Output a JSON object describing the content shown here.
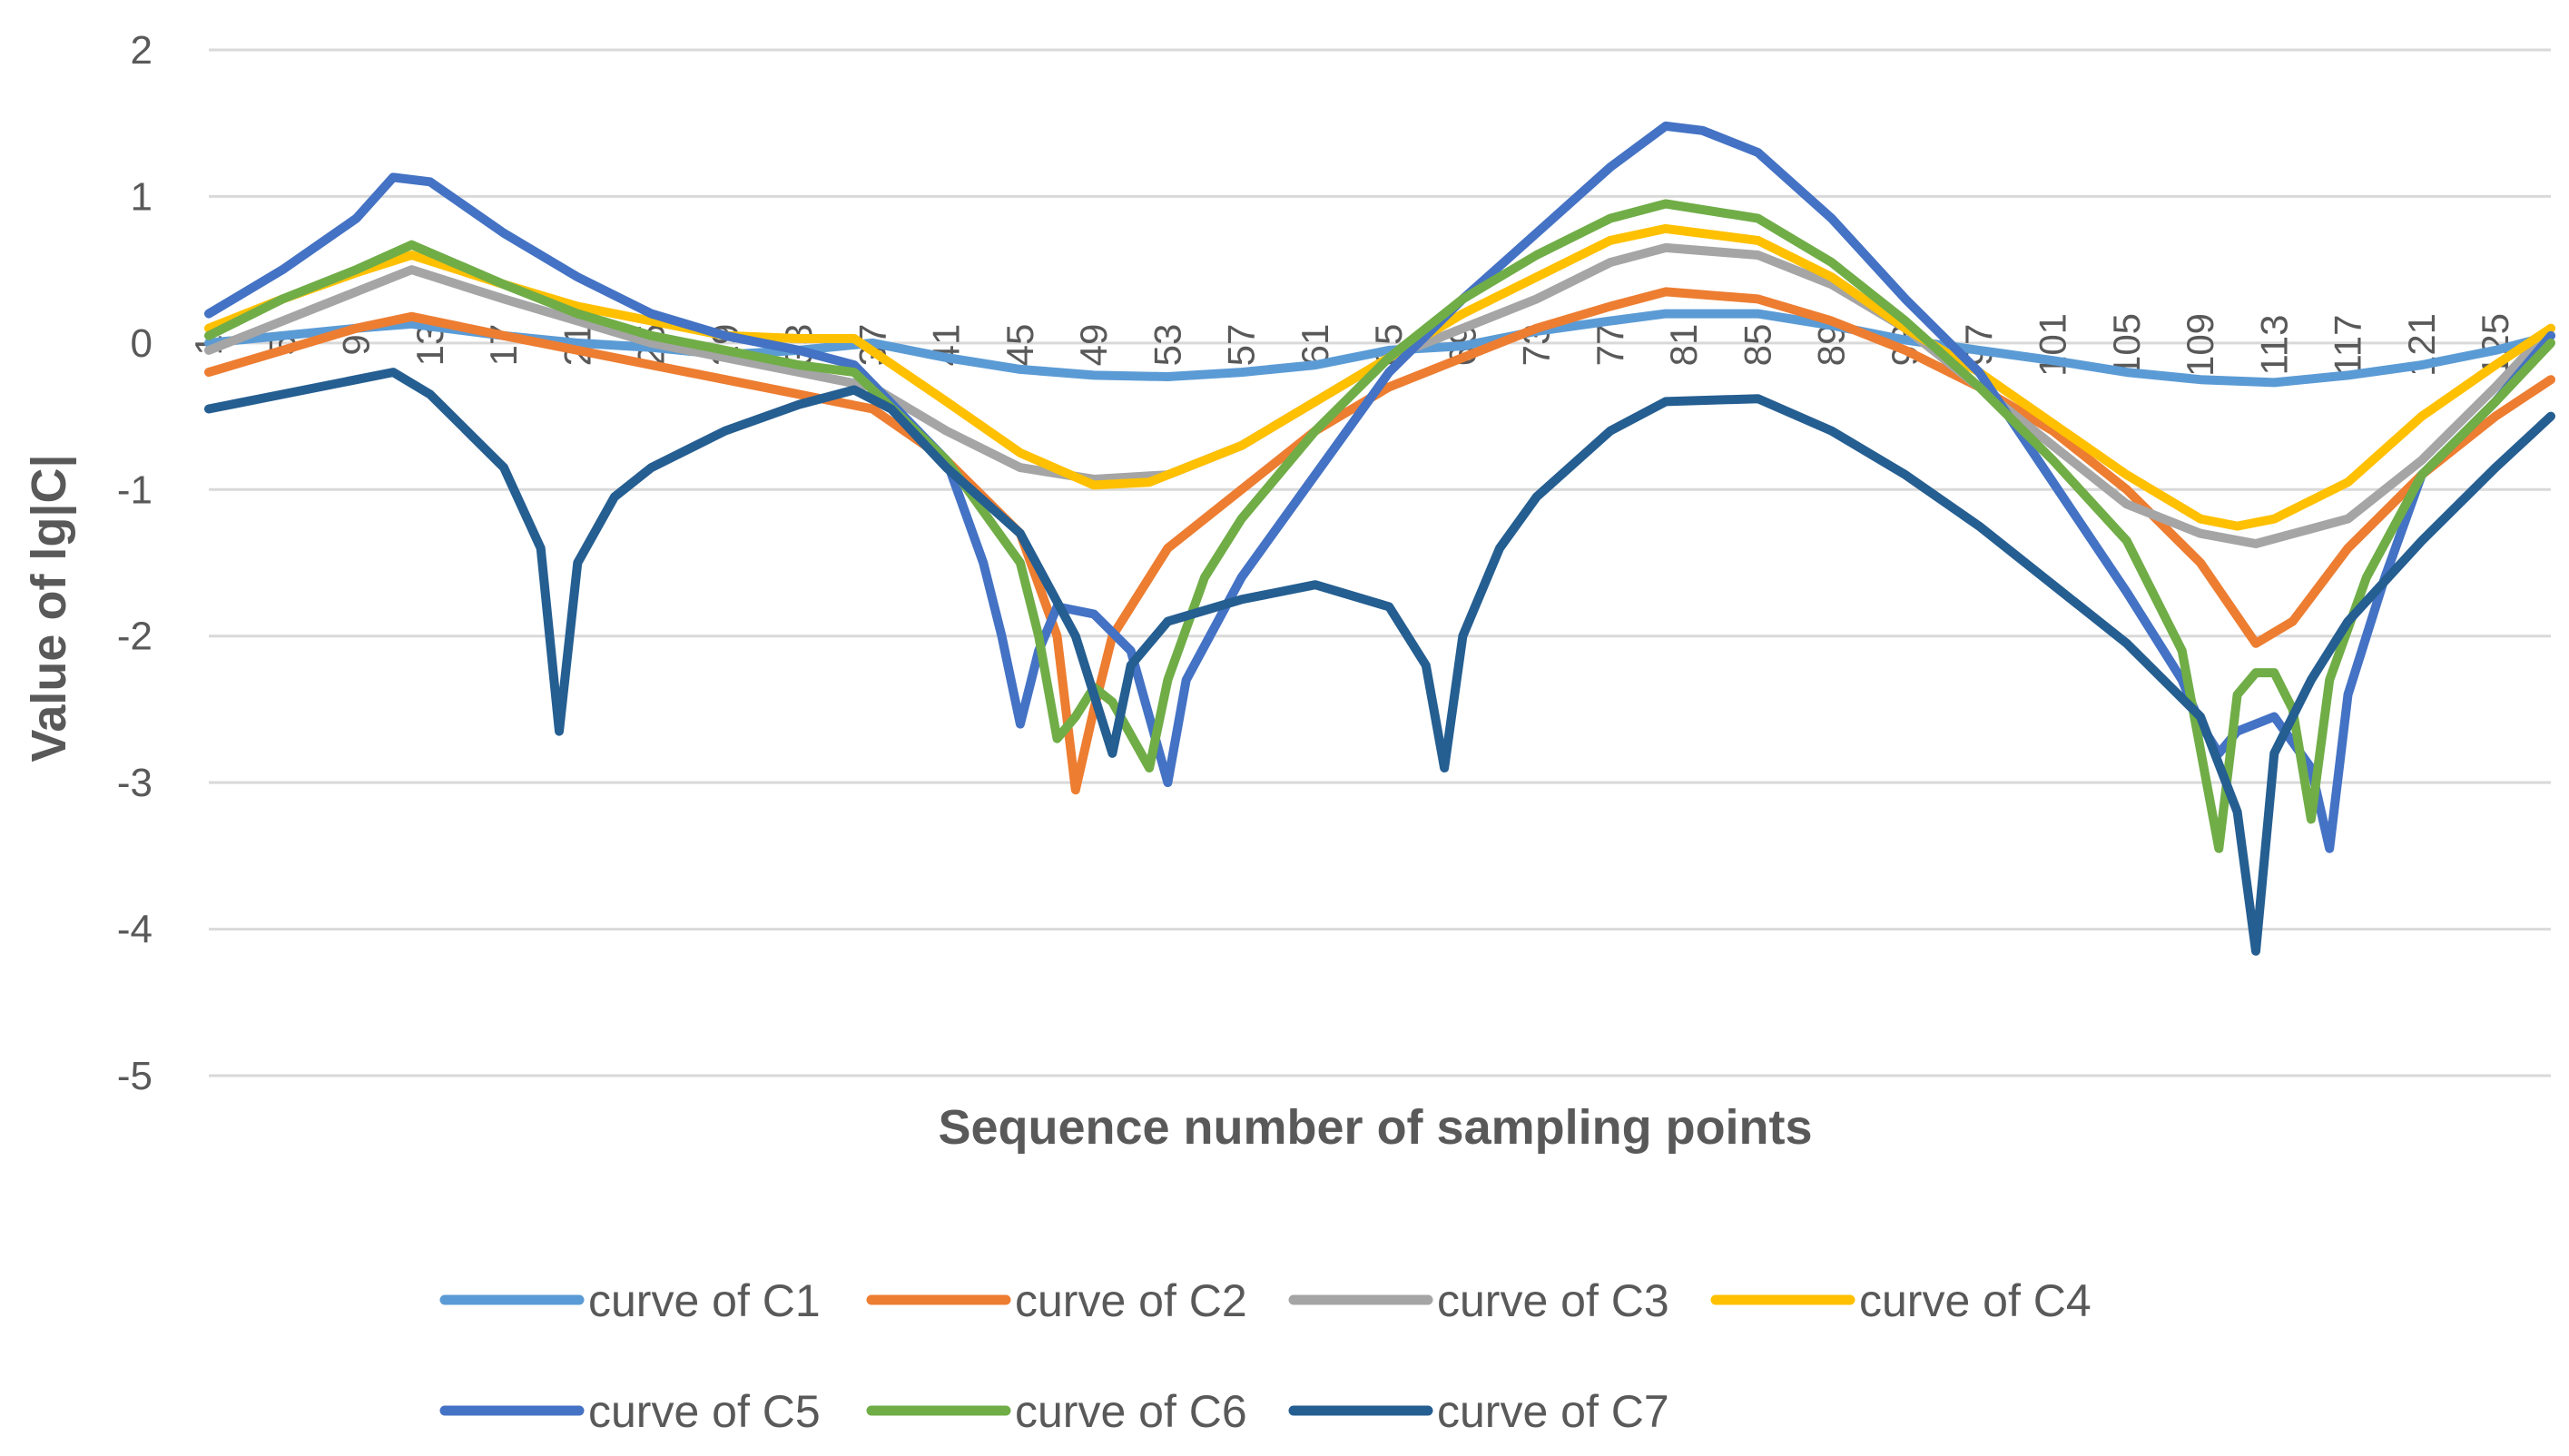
{
  "chart_data": {
    "type": "line",
    "title": "",
    "xlabel": "Sequence number of sampling points",
    "ylabel": "Value of lg|C|",
    "ylim": [
      -5,
      2
    ],
    "yticks": [
      "2",
      "1",
      "0",
      "-1",
      "-2",
      "-3",
      "-4",
      "-5"
    ],
    "xticks": [
      "1",
      "5",
      "9",
      "13",
      "17",
      "21",
      "25",
      "29",
      "33",
      "37",
      "41",
      "45",
      "49",
      "53",
      "57",
      "61",
      "65",
      "69",
      "73",
      "77",
      "81",
      "85",
      "89",
      "93",
      "97",
      "101",
      "105",
      "109",
      "113",
      "117",
      "121",
      "125"
    ],
    "xlim": [
      1,
      128
    ],
    "series": [
      {
        "name": "curve of C1",
        "color": "#5B9BD5",
        "points": [
          [
            1,
            0
          ],
          [
            5,
            0.05
          ],
          [
            9,
            0.1
          ],
          [
            12,
            0.13
          ],
          [
            17,
            0.05
          ],
          [
            21,
            0
          ],
          [
            25,
            -0.03
          ],
          [
            29,
            -0.08
          ],
          [
            33,
            -0.05
          ],
          [
            37,
            0
          ],
          [
            41,
            -0.1
          ],
          [
            45,
            -0.18
          ],
          [
            49,
            -0.22
          ],
          [
            53,
            -0.23
          ],
          [
            57,
            -0.2
          ],
          [
            61,
            -0.15
          ],
          [
            65,
            -0.05
          ],
          [
            69,
            -0.02
          ],
          [
            73,
            0.08
          ],
          [
            77,
            0.15
          ],
          [
            80,
            0.2
          ],
          [
            85,
            0.2
          ],
          [
            89,
            0.12
          ],
          [
            93,
            0.02
          ],
          [
            97,
            -0.05
          ],
          [
            101,
            -0.12
          ],
          [
            105,
            -0.2
          ],
          [
            109,
            -0.25
          ],
          [
            113,
            -0.27
          ],
          [
            117,
            -0.22
          ],
          [
            121,
            -0.15
          ],
          [
            125,
            -0.05
          ],
          [
            128,
            0.05
          ]
        ]
      },
      {
        "name": "curve of C2",
        "color": "#ED7D31",
        "points": [
          [
            1,
            -0.2
          ],
          [
            5,
            -0.05
          ],
          [
            9,
            0.1
          ],
          [
            12,
            0.18
          ],
          [
            17,
            0.05
          ],
          [
            21,
            -0.05
          ],
          [
            25,
            -0.15
          ],
          [
            29,
            -0.25
          ],
          [
            33,
            -0.35
          ],
          [
            37,
            -0.45
          ],
          [
            41,
            -0.8
          ],
          [
            45,
            -1.3
          ],
          [
            47,
            -2.0
          ],
          [
            48,
            -3.05
          ],
          [
            49,
            -2.5
          ],
          [
            50,
            -2.0
          ],
          [
            53,
            -1.4
          ],
          [
            57,
            -1.0
          ],
          [
            61,
            -0.6
          ],
          [
            65,
            -0.3
          ],
          [
            69,
            -0.1
          ],
          [
            73,
            0.1
          ],
          [
            77,
            0.25
          ],
          [
            80,
            0.35
          ],
          [
            85,
            0.3
          ],
          [
            89,
            0.15
          ],
          [
            93,
            -0.05
          ],
          [
            97,
            -0.3
          ],
          [
            101,
            -0.6
          ],
          [
            105,
            -1.0
          ],
          [
            109,
            -1.5
          ],
          [
            112,
            -2.05
          ],
          [
            114,
            -1.9
          ],
          [
            117,
            -1.4
          ],
          [
            121,
            -0.9
          ],
          [
            125,
            -0.5
          ],
          [
            128,
            -0.25
          ]
        ]
      },
      {
        "name": "curve of C3",
        "color": "#A5A5A5",
        "points": [
          [
            1,
            -0.05
          ],
          [
            5,
            0.15
          ],
          [
            9,
            0.35
          ],
          [
            12,
            0.5
          ],
          [
            17,
            0.3
          ],
          [
            21,
            0.15
          ],
          [
            25,
            0
          ],
          [
            29,
            -0.1
          ],
          [
            33,
            -0.2
          ],
          [
            37,
            -0.3
          ],
          [
            41,
            -0.6
          ],
          [
            45,
            -0.85
          ],
          [
            49,
            -0.93
          ],
          [
            53,
            -0.9
          ],
          [
            57,
            -0.7
          ],
          [
            61,
            -0.4
          ],
          [
            65,
            -0.1
          ],
          [
            69,
            0.1
          ],
          [
            73,
            0.3
          ],
          [
            77,
            0.55
          ],
          [
            80,
            0.65
          ],
          [
            85,
            0.6
          ],
          [
            89,
            0.4
          ],
          [
            93,
            0.1
          ],
          [
            97,
            -0.3
          ],
          [
            101,
            -0.7
          ],
          [
            105,
            -1.1
          ],
          [
            109,
            -1.3
          ],
          [
            112,
            -1.37
          ],
          [
            117,
            -1.2
          ],
          [
            121,
            -0.8
          ],
          [
            125,
            -0.3
          ],
          [
            128,
            0.1
          ]
        ]
      },
      {
        "name": "curve of C4",
        "color": "#FFC000",
        "points": [
          [
            1,
            0.1
          ],
          [
            5,
            0.3
          ],
          [
            9,
            0.48
          ],
          [
            12,
            0.6
          ],
          [
            17,
            0.4
          ],
          [
            21,
            0.25
          ],
          [
            25,
            0.15
          ],
          [
            29,
            0.05
          ],
          [
            33,
            0.03
          ],
          [
            36,
            0.03
          ],
          [
            41,
            -0.4
          ],
          [
            45,
            -0.75
          ],
          [
            49,
            -0.97
          ],
          [
            52,
            -0.95
          ],
          [
            57,
            -0.7
          ],
          [
            61,
            -0.4
          ],
          [
            65,
            -0.1
          ],
          [
            69,
            0.2
          ],
          [
            73,
            0.45
          ],
          [
            77,
            0.7
          ],
          [
            80,
            0.78
          ],
          [
            85,
            0.7
          ],
          [
            89,
            0.45
          ],
          [
            93,
            0.1
          ],
          [
            97,
            -0.2
          ],
          [
            101,
            -0.55
          ],
          [
            105,
            -0.9
          ],
          [
            109,
            -1.2
          ],
          [
            111,
            -1.25
          ],
          [
            113,
            -1.2
          ],
          [
            117,
            -0.95
          ],
          [
            121,
            -0.5
          ],
          [
            125,
            -0.15
          ],
          [
            128,
            0.1
          ]
        ]
      },
      {
        "name": "curve of C5",
        "color": "#4472C4",
        "points": [
          [
            1,
            0.2
          ],
          [
            5,
            0.5
          ],
          [
            9,
            0.85
          ],
          [
            11,
            1.13
          ],
          [
            13,
            1.1
          ],
          [
            17,
            0.75
          ],
          [
            21,
            0.45
          ],
          [
            25,
            0.2
          ],
          [
            29,
            0.05
          ],
          [
            33,
            -0.05
          ],
          [
            36,
            -0.15
          ],
          [
            41,
            -0.8
          ],
          [
            43,
            -1.5
          ],
          [
            44,
            -2.0
          ],
          [
            45,
            -2.6
          ],
          [
            46,
            -2.1
          ],
          [
            47,
            -1.8
          ],
          [
            49,
            -1.85
          ],
          [
            51,
            -2.1
          ],
          [
            53,
            -3.0
          ],
          [
            54,
            -2.3
          ],
          [
            57,
            -1.6
          ],
          [
            61,
            -0.9
          ],
          [
            65,
            -0.2
          ],
          [
            69,
            0.3
          ],
          [
            73,
            0.75
          ],
          [
            77,
            1.2
          ],
          [
            80,
            1.48
          ],
          [
            82,
            1.45
          ],
          [
            85,
            1.3
          ],
          [
            89,
            0.85
          ],
          [
            93,
            0.3
          ],
          [
            97,
            -0.2
          ],
          [
            101,
            -0.95
          ],
          [
            105,
            -1.7
          ],
          [
            108,
            -2.3
          ],
          [
            109,
            -2.6
          ],
          [
            110,
            -2.8
          ],
          [
            111,
            -2.65
          ],
          [
            113,
            -2.55
          ],
          [
            115,
            -2.9
          ],
          [
            116,
            -3.45
          ],
          [
            117,
            -2.4
          ],
          [
            119,
            -1.6
          ],
          [
            121,
            -0.9
          ],
          [
            125,
            -0.4
          ],
          [
            128,
            0.05
          ]
        ]
      },
      {
        "name": "curve of C6",
        "color": "#70AD47",
        "points": [
          [
            1,
            0.05
          ],
          [
            5,
            0.3
          ],
          [
            9,
            0.5
          ],
          [
            12,
            0.67
          ],
          [
            17,
            0.4
          ],
          [
            21,
            0.2
          ],
          [
            25,
            0.05
          ],
          [
            29,
            -0.05
          ],
          [
            33,
            -0.15
          ],
          [
            36,
            -0.2
          ],
          [
            41,
            -0.8
          ],
          [
            45,
            -1.5
          ],
          [
            46,
            -2.0
          ],
          [
            47,
            -2.7
          ],
          [
            48,
            -2.55
          ],
          [
            49,
            -2.35
          ],
          [
            50,
            -2.45
          ],
          [
            52,
            -2.9
          ],
          [
            53,
            -2.3
          ],
          [
            55,
            -1.6
          ],
          [
            57,
            -1.2
          ],
          [
            61,
            -0.6
          ],
          [
            65,
            -0.1
          ],
          [
            69,
            0.3
          ],
          [
            73,
            0.6
          ],
          [
            77,
            0.85
          ],
          [
            80,
            0.95
          ],
          [
            85,
            0.85
          ],
          [
            89,
            0.55
          ],
          [
            93,
            0.15
          ],
          [
            97,
            -0.3
          ],
          [
            101,
            -0.8
          ],
          [
            105,
            -1.35
          ],
          [
            108,
            -2.1
          ],
          [
            110,
            -3.45
          ],
          [
            111,
            -2.4
          ],
          [
            112,
            -2.25
          ],
          [
            113,
            -2.25
          ],
          [
            114,
            -2.5
          ],
          [
            115,
            -3.25
          ],
          [
            116,
            -2.3
          ],
          [
            118,
            -1.6
          ],
          [
            121,
            -0.9
          ],
          [
            125,
            -0.4
          ],
          [
            128,
            0.0
          ]
        ]
      },
      {
        "name": "curve of C7",
        "color": "#255E91",
        "points": [
          [
            1,
            -0.45
          ],
          [
            5,
            -0.35
          ],
          [
            9,
            -0.25
          ],
          [
            11,
            -0.2
          ],
          [
            13,
            -0.35
          ],
          [
            17,
            -0.85
          ],
          [
            19,
            -1.4
          ],
          [
            20,
            -2.65
          ],
          [
            21,
            -1.5
          ],
          [
            23,
            -1.05
          ],
          [
            25,
            -0.85
          ],
          [
            29,
            -0.6
          ],
          [
            33,
            -0.42
          ],
          [
            36,
            -0.32
          ],
          [
            38,
            -0.45
          ],
          [
            41,
            -0.85
          ],
          [
            45,
            -1.3
          ],
          [
            48,
            -2.0
          ],
          [
            50,
            -2.8
          ],
          [
            51,
            -2.2
          ],
          [
            53,
            -1.9
          ],
          [
            57,
            -1.75
          ],
          [
            61,
            -1.65
          ],
          [
            65,
            -1.8
          ],
          [
            67,
            -2.2
          ],
          [
            68,
            -2.9
          ],
          [
            69,
            -2.0
          ],
          [
            71,
            -1.4
          ],
          [
            73,
            -1.05
          ],
          [
            77,
            -0.6
          ],
          [
            80,
            -0.4
          ],
          [
            85,
            -0.38
          ],
          [
            89,
            -0.6
          ],
          [
            93,
            -0.9
          ],
          [
            97,
            -1.25
          ],
          [
            101,
            -1.65
          ],
          [
            105,
            -2.05
          ],
          [
            109,
            -2.55
          ],
          [
            111,
            -3.2
          ],
          [
            112,
            -4.15
          ],
          [
            113,
            -2.8
          ],
          [
            115,
            -2.3
          ],
          [
            117,
            -1.9
          ],
          [
            121,
            -1.35
          ],
          [
            125,
            -0.85
          ],
          [
            128,
            -0.5
          ]
        ]
      }
    ],
    "legend_position": "bottom"
  }
}
